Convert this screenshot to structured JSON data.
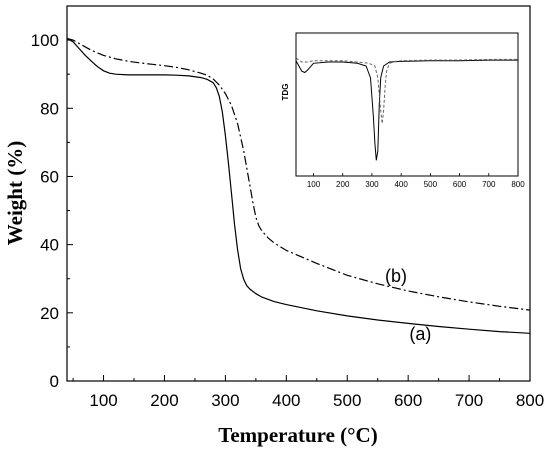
{
  "chart_data": [
    {
      "type": "line",
      "xlabel": "Temperature (°C)",
      "ylabel": "Weight (%)",
      "xlim": [
        40,
        800
      ],
      "ylim": [
        0,
        110
      ],
      "xticks": [
        100,
        200,
        300,
        400,
        500,
        600,
        700,
        800
      ],
      "yticks": [
        0,
        20,
        40,
        60,
        80,
        100
      ],
      "grid": false,
      "series": [
        {
          "name": "(a)",
          "line_style": "solid",
          "color": "#000000",
          "x": [
            40,
            50,
            60,
            70,
            80,
            90,
            100,
            110,
            120,
            140,
            160,
            180,
            200,
            220,
            240,
            260,
            270,
            280,
            285,
            290,
            295,
            300,
            305,
            310,
            315,
            320,
            325,
            330,
            335,
            340,
            350,
            360,
            380,
            400,
            450,
            500,
            550,
            600,
            650,
            700,
            750,
            800
          ],
          "y": [
            100.5,
            99.5,
            97.5,
            95.5,
            93.8,
            92.2,
            91.0,
            90.3,
            90.0,
            89.8,
            89.8,
            89.8,
            89.8,
            89.7,
            89.5,
            89.0,
            88.5,
            87.5,
            86.0,
            83.5,
            79.0,
            72.0,
            64.0,
            55.0,
            46.0,
            38.5,
            33.0,
            29.8,
            28.0,
            27.0,
            25.6,
            24.6,
            23.3,
            22.4,
            20.6,
            19.1,
            17.9,
            16.9,
            16.0,
            15.2,
            14.5,
            14.0
          ]
        },
        {
          "name": "(b)",
          "line_style": "dash-dot",
          "color": "#000000",
          "x": [
            40,
            50,
            60,
            80,
            100,
            120,
            140,
            160,
            180,
            200,
            220,
            240,
            260,
            270,
            280,
            290,
            300,
            310,
            320,
            330,
            340,
            345,
            350,
            355,
            360,
            365,
            370,
            380,
            400,
            450,
            500,
            550,
            600,
            650,
            700,
            750,
            800
          ],
          "y": [
            100.5,
            100.0,
            99.0,
            97.0,
            95.5,
            94.5,
            93.8,
            93.3,
            92.9,
            92.5,
            92.0,
            91.3,
            90.3,
            89.7,
            88.6,
            86.8,
            84.3,
            80.8,
            75.5,
            67.5,
            57.5,
            52.5,
            48.0,
            45.5,
            44.0,
            43.0,
            42.0,
            40.5,
            38.3,
            34.5,
            31.0,
            28.5,
            26.4,
            24.7,
            23.2,
            21.9,
            20.8
          ]
        }
      ],
      "annotations": [
        {
          "text": "(a)",
          "x": 620,
          "y": 12
        },
        {
          "text": "(b)",
          "x": 580,
          "y": 29
        }
      ]
    },
    {
      "type": "line",
      "ylabel": "TDG",
      "xlim": [
        40,
        800
      ],
      "ylim": [
        0,
        1
      ],
      "xticks": [
        100,
        200,
        300,
        400,
        500,
        600,
        700,
        800
      ],
      "grid": false,
      "series": [
        {
          "line_style": "solid",
          "color": "#000000",
          "x": [
            40,
            50,
            60,
            70,
            80,
            100,
            150,
            200,
            250,
            280,
            295,
            305,
            310,
            315,
            320,
            325,
            330,
            340,
            360,
            400,
            500,
            600,
            700,
            800
          ],
          "y": [
            0.88,
            0.84,
            0.8,
            0.79,
            0.81,
            0.86,
            0.87,
            0.87,
            0.86,
            0.84,
            0.75,
            0.45,
            0.25,
            0.12,
            0.19,
            0.55,
            0.75,
            0.84,
            0.87,
            0.875,
            0.88,
            0.88,
            0.885,
            0.885
          ]
        },
        {
          "line_style": "dashed",
          "color": "#666666",
          "x": [
            40,
            60,
            80,
            100,
            150,
            200,
            250,
            290,
            310,
            320,
            330,
            335,
            340,
            345,
            350,
            360,
            380,
            400,
            500,
            600,
            700,
            800
          ],
          "y": [
            0.9,
            0.87,
            0.87,
            0.88,
            0.88,
            0.88,
            0.87,
            0.86,
            0.84,
            0.75,
            0.5,
            0.4,
            0.5,
            0.68,
            0.8,
            0.86,
            0.875,
            0.88,
            0.885,
            0.885,
            0.89,
            0.89
          ]
        }
      ]
    }
  ]
}
